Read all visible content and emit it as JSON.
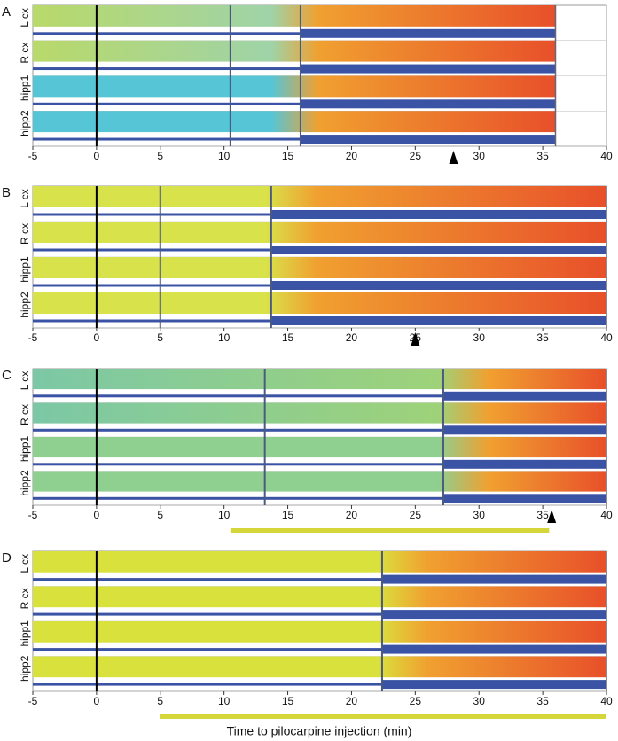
{
  "xlabel": "Time to pilocarpine injection (min)",
  "chart_data": [
    {
      "type": "spectrogram",
      "panel": "A",
      "channels": [
        "L cx",
        "R cx",
        "hipp1",
        "hipp2"
      ],
      "xlim": [
        -5,
        40
      ],
      "xticks": [
        -5,
        0,
        5,
        10,
        15,
        20,
        25,
        30,
        35,
        40
      ],
      "markers": [
        0,
        10.5,
        16
      ],
      "data_end": 36,
      "arrowhead": 28
    },
    {
      "type": "spectrogram",
      "panel": "B",
      "channels": [
        "L cx",
        "R cx",
        "hipp1",
        "hipp2"
      ],
      "xlim": [
        -5,
        40
      ],
      "xticks": [
        -5,
        0,
        5,
        10,
        15,
        20,
        25,
        30,
        35,
        40
      ],
      "markers": [
        0,
        5,
        13.7
      ],
      "data_end": 40,
      "arrowhead": 25
    },
    {
      "type": "spectrogram",
      "panel": "C",
      "channels": [
        "L cx",
        "R cx",
        "hipp1",
        "hipp2"
      ],
      "xlim": [
        -5,
        40
      ],
      "xticks": [
        -5,
        0,
        5,
        10,
        15,
        20,
        25,
        30,
        35,
        40
      ],
      "markers": [
        0,
        13.2,
        27.2
      ],
      "data_end": 40,
      "arrowhead": 35.7,
      "bar": [
        10.5,
        35.5
      ]
    },
    {
      "type": "spectrogram",
      "panel": "D",
      "channels": [
        "L cx",
        "R cx",
        "hipp1",
        "hipp2"
      ],
      "xlim": [
        -5,
        40
      ],
      "xticks": [
        -5,
        0,
        5,
        10,
        15,
        20,
        25,
        30,
        35,
        40
      ],
      "markers": [
        0,
        22.4
      ],
      "data_end": 40,
      "bar": [
        5,
        40
      ]
    }
  ]
}
